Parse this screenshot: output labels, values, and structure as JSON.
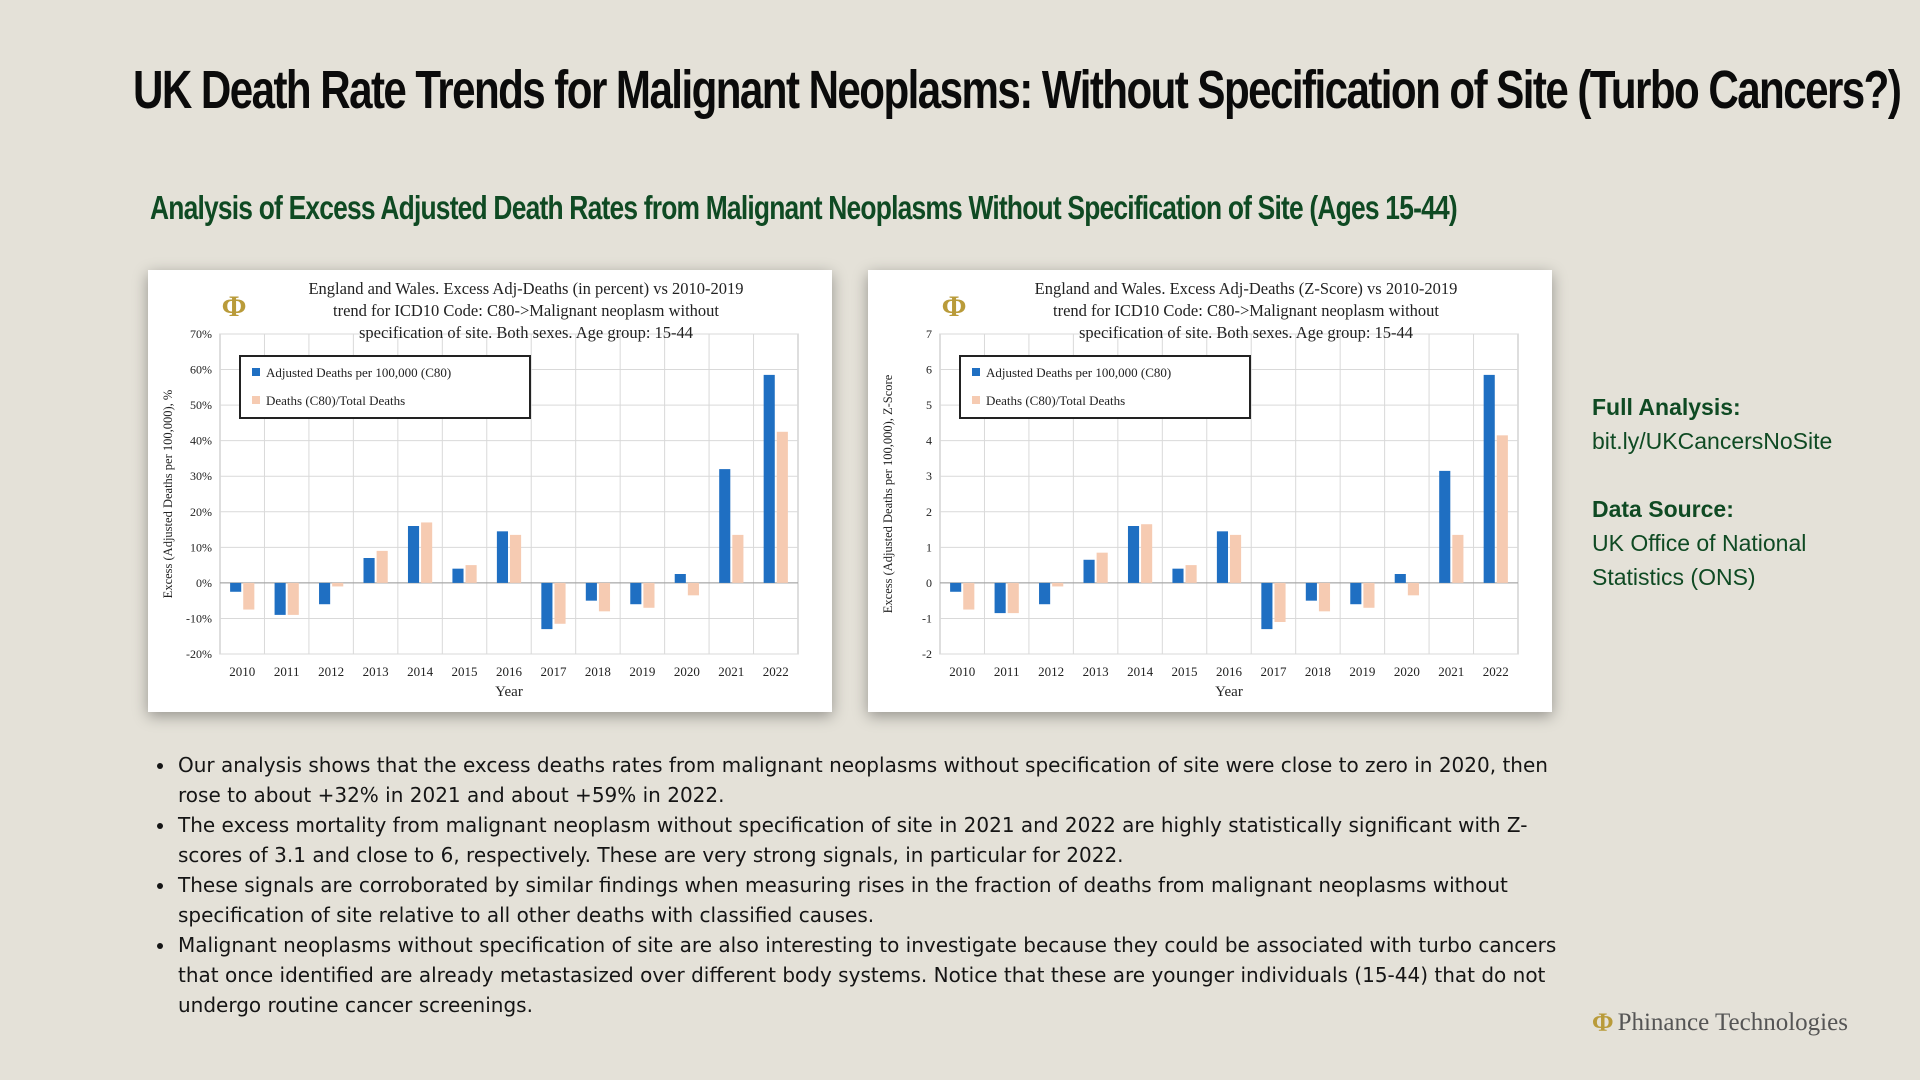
{
  "page": {
    "title": "UK Death Rate Trends for Malignant Neoplasms: Without Specification of Site (Turbo Cancers?)",
    "subtitle": "Analysis of Excess Adjusted Death Rates from Malignant Neoplasms Without Specification of Site (Ages 15-44)"
  },
  "side": {
    "full_label": "Full Analysis:",
    "full_value": "bit.ly/UKCancersNoSite",
    "source_label": "Data Source:",
    "source_value_line1": "UK Office of National",
    "source_value_line2": "Statistics (ONS)"
  },
  "bullets": [
    "Our analysis shows that the excess deaths rates from malignant neoplasms without specification of site were close to zero in 2020, then rose to about +32% in 2021 and about +59% in 2022.",
    "The excess mortality from malignant neoplasm without specification of site in 2021 and 2022 are highly statistically significant with Z-scores of 3.1 and close to 6, respectively. These are very strong signals, in particular for 2022.",
    "These signals are corroborated by similar findings when measuring rises in the fraction of deaths from malignant neoplasms without specification of site relative to all other deaths with classified causes.",
    "Malignant neoplasms without specification of site are also interesting to investigate because they could be associated with turbo cancers that once identified are already metastasized over different body systems. Notice that these are younger individuals (15-44) that do not undergo routine cancer screenings."
  ],
  "brand": {
    "logo_glyph": "Φ",
    "name": "Phinance Technologies"
  },
  "colors": {
    "series1": "#1f6fc2",
    "series2": "#f6cbb2",
    "series2_light": "#fbdfd0",
    "grid": "#d9d9d9",
    "title": "#0b0b0b",
    "subtitle": "#0f4a23"
  },
  "chart_data": [
    {
      "type": "bar",
      "title_lines": [
        "England and Wales. Excess Adj-Deaths (in percent) vs 2010-2019",
        "trend for ICD10 Code: C80->Malignant neoplasm without",
        "specification of site. Both sexes. Age group: 15-44"
      ],
      "logo_glyph": "Φ",
      "xlabel": "Year",
      "ylabel": "Excess (Adjusted Deaths per 100,000), %",
      "categories": [
        "2010",
        "2011",
        "2012",
        "2013",
        "2014",
        "2015",
        "2016",
        "2017",
        "2018",
        "2019",
        "2020",
        "2021",
        "2022"
      ],
      "ylim": [
        -20,
        70
      ],
      "yticks": [
        -20,
        -10,
        0,
        10,
        20,
        30,
        40,
        50,
        60,
        70
      ],
      "ytick_labels": [
        "-20%",
        "-10%",
        "0%",
        "10%",
        "20%",
        "30%",
        "40%",
        "50%",
        "60%",
        "70%"
      ],
      "legend_position": "top-left",
      "series": [
        {
          "name": "Adjusted Deaths per 100,000 (C80)",
          "values": [
            -2.5,
            -9,
            -6,
            7,
            16,
            4,
            14.5,
            -13,
            -5,
            -6,
            2.5,
            32,
            58.5
          ]
        },
        {
          "name": "Deaths (C80)/Total Deaths",
          "values": [
            -7.5,
            -9,
            -1,
            9,
            17,
            5,
            13.5,
            -11.5,
            -8,
            -7,
            -3.5,
            13.5,
            42.5
          ]
        }
      ]
    },
    {
      "type": "bar",
      "title_lines": [
        "England and Wales. Excess Adj-Deaths (Z-Score) vs 2010-2019",
        "trend for ICD10 Code: C80->Malignant neoplasm without",
        "specification of site. Both sexes. Age group: 15-44"
      ],
      "logo_glyph": "Φ",
      "xlabel": "Year",
      "ylabel": "Excess (Adjusted Deaths per 100,000), Z-Score",
      "categories": [
        "2010",
        "2011",
        "2012",
        "2013",
        "2014",
        "2015",
        "2016",
        "2017",
        "2018",
        "2019",
        "2020",
        "2021",
        "2022"
      ],
      "ylim": [
        -2,
        7
      ],
      "yticks": [
        -2,
        -1,
        0,
        1,
        2,
        3,
        4,
        5,
        6,
        7
      ],
      "ytick_labels": [
        "-2",
        "-1",
        "0",
        "1",
        "2",
        "3",
        "4",
        "5",
        "6",
        "7"
      ],
      "legend_position": "top-left",
      "series": [
        {
          "name": "Adjusted Deaths per 100,000 (C80)",
          "values": [
            -0.25,
            -0.85,
            -0.6,
            0.65,
            1.6,
            0.4,
            1.45,
            -1.3,
            -0.5,
            -0.6,
            0.25,
            3.15,
            5.85
          ]
        },
        {
          "name": "Deaths (C80)/Total Deaths",
          "values": [
            -0.75,
            -0.85,
            -0.1,
            0.85,
            1.65,
            0.5,
            1.35,
            -1.1,
            -0.8,
            -0.7,
            -0.35,
            1.35,
            4.15
          ]
        }
      ]
    }
  ]
}
